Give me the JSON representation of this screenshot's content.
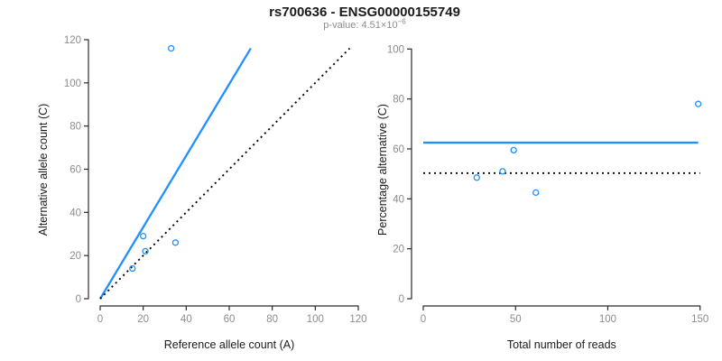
{
  "header": {
    "title": "rs700636 - ENSG00000155749",
    "subtitle_prefix": "p-value: 4.51×10",
    "subtitle_exponent": "−6"
  },
  "colors": {
    "accent_blue": "#1E90FF",
    "tick_label_gray": "#8c8c8c",
    "axis_line": "#2b2b2b",
    "axis_title": "#1a1a1a",
    "dotted_line": "#000000"
  },
  "chart_data": [
    {
      "type": "scatter",
      "name": "allele-counts-scatter",
      "title": "",
      "xlabel": "Reference allele count (A)",
      "ylabel": "Alternative allele count (C)",
      "xlim": [
        0,
        120
      ],
      "ylim": [
        0,
        120
      ],
      "xticks": [
        0,
        20,
        40,
        60,
        80,
        100,
        120
      ],
      "yticks": [
        0,
        20,
        40,
        60,
        80,
        100,
        120
      ],
      "grid": false,
      "legend": "none",
      "points": [
        [
          15,
          14
        ],
        [
          20,
          29
        ],
        [
          21,
          22
        ],
        [
          33,
          116
        ],
        [
          35,
          26
        ]
      ],
      "lines": [
        {
          "name": "fitted-allelic-ratio-line",
          "style": "solid",
          "color": "#1E90FF",
          "from": [
            0,
            0
          ],
          "to": [
            70,
            116
          ]
        },
        {
          "name": "identity-line",
          "style": "dotted",
          "color": "#000000",
          "from": [
            0,
            0
          ],
          "to": [
            116,
            116
          ]
        }
      ]
    },
    {
      "type": "scatter",
      "name": "percentage-vs-reads-scatter",
      "title": "",
      "xlabel": "Total number of reads",
      "ylabel": "Percentage alternative (C)",
      "xlim": [
        0,
        150
      ],
      "ylim": [
        0,
        100
      ],
      "xticks": [
        0,
        50,
        100,
        150
      ],
      "yticks": [
        0,
        20,
        40,
        60,
        80,
        100
      ],
      "grid": false,
      "legend": "none",
      "points": [
        [
          29,
          48.5
        ],
        [
          43,
          51
        ],
        [
          49,
          59.5
        ],
        [
          61,
          42.5
        ],
        [
          149,
          78
        ]
      ],
      "lines": [
        {
          "name": "fitted-percentage-line",
          "style": "solid",
          "color": "#1E90FF",
          "from": [
            0,
            62.5
          ],
          "to": [
            149,
            62.5
          ]
        },
        {
          "name": "null-50-percent-line",
          "style": "dotted",
          "color": "#000000",
          "from": [
            0,
            50.3
          ],
          "to": [
            150,
            50.3
          ]
        }
      ]
    }
  ]
}
